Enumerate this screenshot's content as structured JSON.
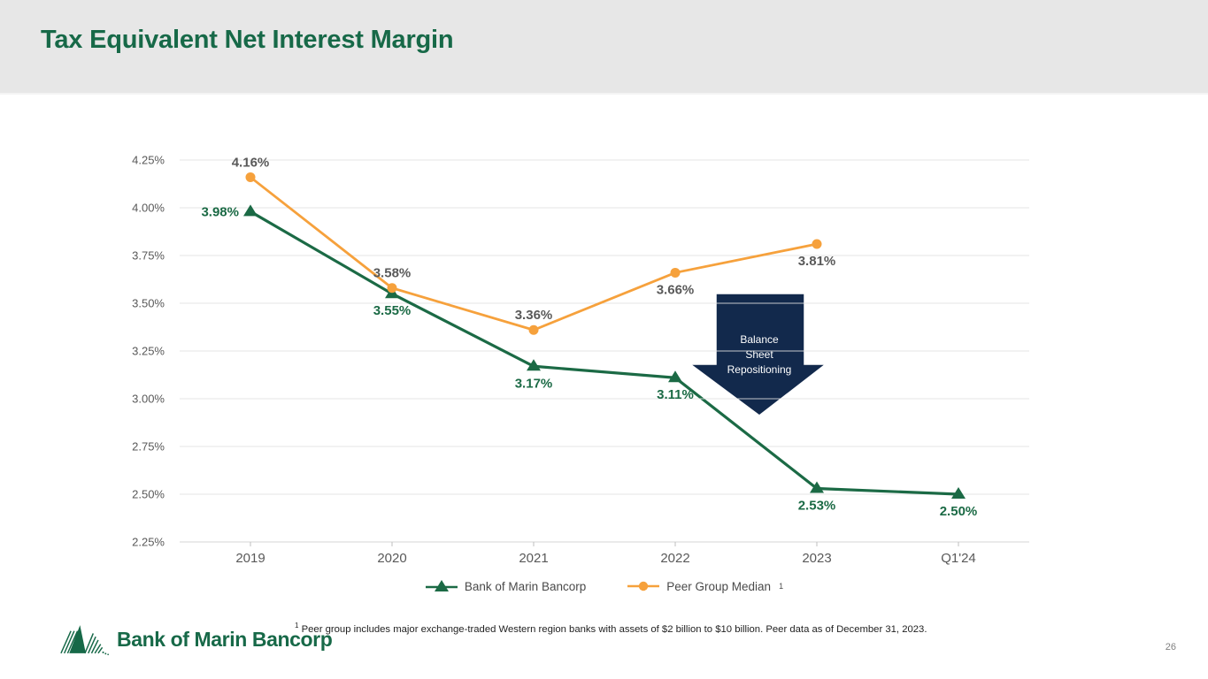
{
  "page": {
    "title": "Tax Equivalent Net Interest Margin",
    "page_number": "26",
    "logo_text": "Bank of Marin Bancorp",
    "footnote_superscript": "1",
    "footnote_text": "Peer group includes major exchange-traded Western region banks with assets of $2 billion to $10 billion. Peer data as of December 31, 2023."
  },
  "colors": {
    "title_green": "#176948",
    "series_green": "#1B6A45",
    "series_orange": "#F6A13C",
    "annotation_navy": "#12294C",
    "tick_gray": "#595959",
    "header_bg": "#E7E7E7",
    "gridline_gray": "#E4E4E4",
    "page_number_gray": "#7F7F7F"
  },
  "chart_data": {
    "type": "line",
    "title": "",
    "categories": [
      "2019",
      "2020",
      "2021",
      "2022",
      "2023",
      "Q1'24"
    ],
    "series": [
      {
        "name": "Bank of Marin Bancorp",
        "values": [
          3.98,
          3.55,
          3.17,
          3.11,
          2.53,
          2.5
        ],
        "color": "#1B6A45",
        "marker": "triangle",
        "label_color": "#1B6A45",
        "label_positions": [
          "left",
          "below",
          "below",
          "below",
          "below",
          "below"
        ]
      },
      {
        "name": "Peer Group Median",
        "legend_superscript": "1",
        "values": [
          4.16,
          3.58,
          3.36,
          3.66,
          3.81,
          null
        ],
        "color": "#F6A13C",
        "marker": "circle",
        "label_color": "#595959",
        "label_positions": [
          "above",
          "above",
          "above",
          "below",
          "below",
          null
        ]
      }
    ],
    "xlabel": "",
    "ylabel": "",
    "ylim": [
      2.25,
      4.25
    ],
    "ytick_step": 0.25,
    "ytick_labels": [
      "4.25%",
      "4.00%",
      "3.75%",
      "3.50%",
      "3.25%",
      "3.00%",
      "2.75%",
      "2.50%",
      "2.25%"
    ],
    "value_suffix": "%",
    "grid": true,
    "legend_position": "bottom",
    "annotation": {
      "lines": [
        "Balance",
        "Sheet",
        "Repositioning"
      ],
      "fill": "#12294C",
      "text_color": "#FFFFFF"
    }
  }
}
